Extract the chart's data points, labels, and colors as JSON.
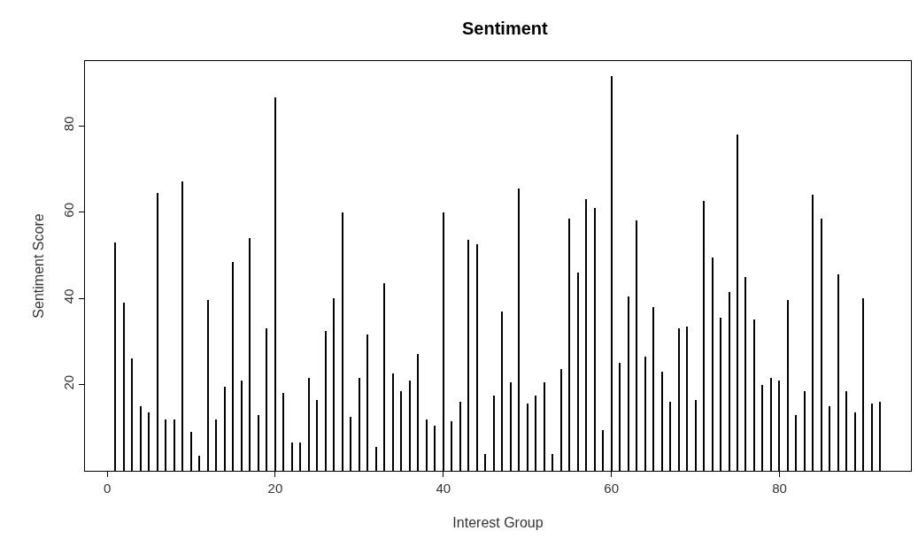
{
  "chart_data": {
    "type": "bar",
    "title": "Sentiment",
    "xlabel": "Interest Group",
    "ylabel": "Sentiment Score",
    "x": [
      1,
      2,
      3,
      4,
      5,
      6,
      7,
      8,
      9,
      10,
      11,
      12,
      13,
      14,
      15,
      16,
      17,
      18,
      19,
      20,
      21,
      22,
      23,
      24,
      25,
      26,
      27,
      28,
      29,
      30,
      31,
      32,
      33,
      34,
      35,
      36,
      37,
      38,
      39,
      40,
      41,
      42,
      43,
      44,
      45,
      46,
      47,
      48,
      49,
      50,
      51,
      52,
      53,
      54,
      55,
      56,
      57,
      58,
      59,
      60,
      61,
      62,
      63,
      64,
      65,
      66,
      67,
      68,
      69,
      70,
      71,
      72,
      73,
      74,
      75,
      76,
      77,
      78,
      79,
      80,
      81,
      82,
      83,
      84,
      85,
      86,
      87,
      88,
      89,
      90,
      91,
      92
    ],
    "values": [
      53,
      39,
      26,
      15,
      13.5,
      64.5,
      12,
      12,
      67,
      9,
      3.5,
      39.5,
      12,
      19.5,
      48.5,
      21,
      54,
      13,
      33,
      86.5,
      18,
      6.5,
      6.5,
      21.5,
      16.5,
      32.5,
      40,
      60,
      12.5,
      21.5,
      31.5,
      5.5,
      43.5,
      22.5,
      18.5,
      21,
      27,
      12,
      10.5,
      60,
      11.5,
      16,
      53.5,
      52.5,
      4,
      17.5,
      37,
      20.5,
      65.5,
      15.5,
      17.5,
      20.5,
      4,
      23.5,
      58.5,
      46,
      63,
      61,
      9.5,
      91.5,
      25,
      40.5,
      58,
      26.5,
      38,
      23,
      16,
      33,
      33.5,
      16.5,
      62.5,
      49.5,
      35.5,
      41.5,
      78,
      45,
      35,
      20,
      21.5,
      21,
      39.5,
      13,
      18.5,
      64,
      58.5,
      15,
      45.5,
      18.5,
      13.5,
      40,
      15.5,
      16
    ],
    "color": "#000000",
    "xlim": [
      -2.64,
      95.64
    ],
    "ylim": [
      0,
      95
    ],
    "xticks": [
      0,
      20,
      40,
      60,
      80
    ],
    "yticks": [
      20,
      40,
      60,
      80
    ],
    "legend": false
  }
}
